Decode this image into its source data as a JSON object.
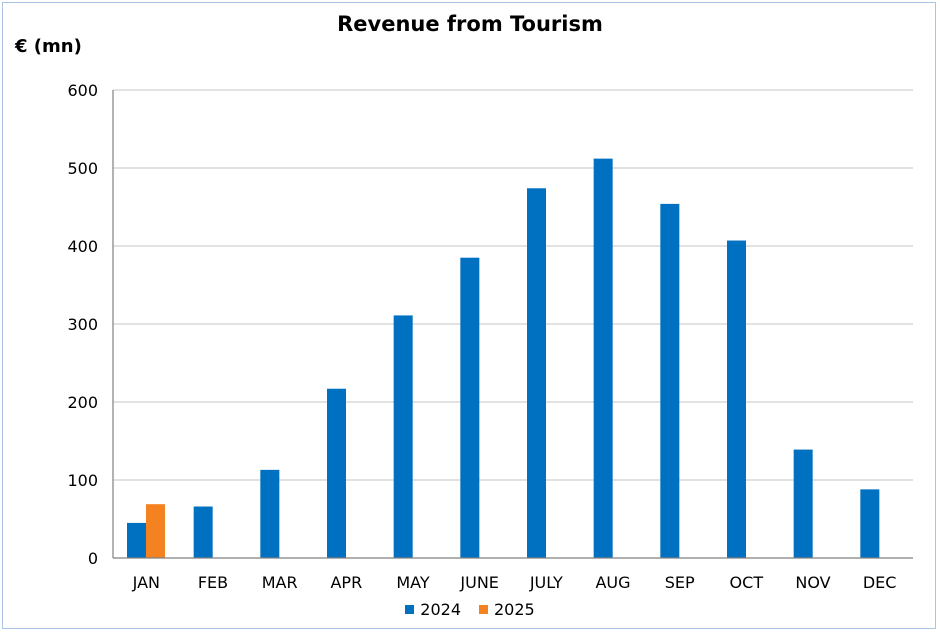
{
  "chart_data": {
    "type": "bar",
    "title": "Revenue from Tourism",
    "ylabel": "€ (mn)",
    "xlabel": "",
    "categories": [
      "JAN",
      "FEB",
      "MAR",
      "APR",
      "MAY",
      "JUNE",
      "JULY",
      "AUG",
      "SEP",
      "OCT",
      "NOV",
      "DEC"
    ],
    "series": [
      {
        "name": "2024",
        "color": "#0070c0",
        "values": [
          45,
          66,
          113,
          217,
          311,
          385,
          474,
          512,
          454,
          407,
          139,
          88
        ]
      },
      {
        "name": "2025",
        "color": "#f58220",
        "values": [
          69,
          null,
          null,
          null,
          null,
          null,
          null,
          null,
          null,
          null,
          null,
          null
        ]
      }
    ],
    "ylim": [
      0,
      600
    ],
    "yticks": [
      0,
      100,
      200,
      300,
      400,
      500,
      600
    ],
    "grid": true,
    "legend": "bottom-center"
  }
}
